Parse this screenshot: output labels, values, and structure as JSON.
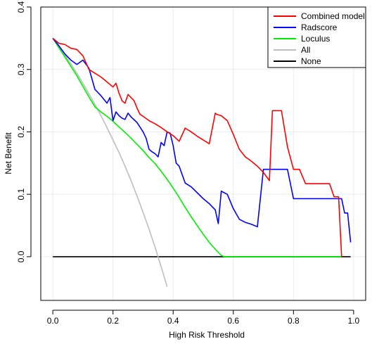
{
  "chart_data": {
    "type": "line",
    "title": "",
    "xlabel": "High Risk Threshold",
    "ylabel": "Net Benefit",
    "xlim": [
      0.0,
      1.0
    ],
    "ylim": [
      -0.07,
      0.4
    ],
    "x_ticks": [
      0.0,
      0.2,
      0.4,
      0.6,
      0.8,
      1.0
    ],
    "x_tick_labels": [
      "0.0",
      "0.2",
      "0.4",
      "0.6",
      "0.8",
      "1.0"
    ],
    "y_ticks": [
      0.0,
      0.1,
      0.2,
      0.3,
      0.4
    ],
    "y_tick_labels": [
      "0.0",
      "0.1",
      "0.2",
      "0.3",
      "0.4"
    ],
    "grid": true,
    "legend_position": "top-right",
    "series": [
      {
        "name": "Combined model",
        "color": "#ff0000",
        "x": [
          0.0,
          0.02,
          0.04,
          0.06,
          0.08,
          0.1,
          0.12,
          0.14,
          0.16,
          0.18,
          0.2,
          0.21,
          0.22,
          0.23,
          0.24,
          0.25,
          0.26,
          0.27,
          0.28,
          0.29,
          0.3,
          0.32,
          0.34,
          0.36,
          0.38,
          0.4,
          0.42,
          0.44,
          0.46,
          0.48,
          0.5,
          0.52,
          0.54,
          0.545,
          0.56,
          0.58,
          0.6,
          0.62,
          0.64,
          0.66,
          0.68,
          0.7,
          0.72,
          0.73,
          0.74,
          0.76,
          0.78,
          0.8,
          0.82,
          0.84,
          0.86,
          0.88,
          0.9,
          0.92,
          0.935,
          0.95,
          0.96
        ],
        "values": [
          0.35,
          0.342,
          0.34,
          0.334,
          0.332,
          0.322,
          0.3,
          0.294,
          0.288,
          0.28,
          0.272,
          0.278,
          0.262,
          0.25,
          0.246,
          0.26,
          0.255,
          0.25,
          0.238,
          0.228,
          0.225,
          0.218,
          0.213,
          0.207,
          0.2,
          0.194,
          0.185,
          0.206,
          0.2,
          0.193,
          0.187,
          0.181,
          0.23,
          0.228,
          0.226,
          0.218,
          0.196,
          0.172,
          0.16,
          0.153,
          0.145,
          0.135,
          0.122,
          0.234,
          0.234,
          0.234,
          0.176,
          0.14,
          0.14,
          0.117,
          0.117,
          0.117,
          0.117,
          0.117,
          0.096,
          0.096,
          0.0
        ]
      },
      {
        "name": "Radscore",
        "color": "#0000ff",
        "x": [
          0.0,
          0.02,
          0.04,
          0.06,
          0.08,
          0.1,
          0.12,
          0.13,
          0.14,
          0.16,
          0.18,
          0.19,
          0.2,
          0.21,
          0.22,
          0.23,
          0.24,
          0.25,
          0.26,
          0.28,
          0.3,
          0.31,
          0.32,
          0.33,
          0.34,
          0.35,
          0.36,
          0.37,
          0.38,
          0.39,
          0.4,
          0.41,
          0.42,
          0.44,
          0.46,
          0.5,
          0.52,
          0.54,
          0.55,
          0.56,
          0.58,
          0.6,
          0.62,
          0.64,
          0.66,
          0.68,
          0.7,
          0.72,
          0.74,
          0.76,
          0.78,
          0.8,
          0.82,
          0.84,
          0.86,
          0.88,
          0.9,
          0.92,
          0.94,
          0.96,
          0.97,
          0.98,
          0.99
        ],
        "values": [
          0.35,
          0.338,
          0.325,
          0.315,
          0.308,
          0.315,
          0.302,
          0.285,
          0.268,
          0.258,
          0.246,
          0.255,
          0.218,
          0.232,
          0.226,
          0.222,
          0.22,
          0.23,
          0.224,
          0.215,
          0.2,
          0.19,
          0.172,
          0.168,
          0.165,
          0.16,
          0.183,
          0.178,
          0.2,
          0.198,
          0.178,
          0.15,
          0.145,
          0.118,
          0.112,
          0.093,
          0.085,
          0.075,
          0.053,
          0.105,
          0.1,
          0.077,
          0.06,
          0.055,
          0.052,
          0.048,
          0.14,
          0.14,
          0.14,
          0.14,
          0.14,
          0.093,
          0.093,
          0.093,
          0.093,
          0.093,
          0.093,
          0.093,
          0.093,
          0.093,
          0.07,
          0.07,
          0.023
        ]
      },
      {
        "name": "Loculus",
        "color": "#00ee00",
        "x": [
          0.0,
          0.02,
          0.04,
          0.06,
          0.08,
          0.1,
          0.12,
          0.14,
          0.16,
          0.18,
          0.2,
          0.22,
          0.24,
          0.26,
          0.28,
          0.3,
          0.32,
          0.34,
          0.36,
          0.38,
          0.4,
          0.42,
          0.44,
          0.46,
          0.48,
          0.5,
          0.52,
          0.54,
          0.56,
          0.57,
          0.6,
          0.7,
          0.8,
          0.9,
          0.95,
          0.96
        ],
        "values": [
          0.35,
          0.335,
          0.32,
          0.305,
          0.29,
          0.273,
          0.256,
          0.24,
          0.232,
          0.225,
          0.217,
          0.208,
          0.199,
          0.19,
          0.18,
          0.17,
          0.159,
          0.149,
          0.137,
          0.124,
          0.11,
          0.095,
          0.079,
          0.064,
          0.05,
          0.036,
          0.023,
          0.012,
          0.002,
          0.0,
          0.0,
          0.0,
          0.0,
          0.0,
          0.0,
          0.0
        ]
      },
      {
        "name": "All",
        "color": "#bebebe",
        "x": [
          0.0,
          0.02,
          0.04,
          0.06,
          0.08,
          0.1,
          0.12,
          0.14,
          0.16,
          0.18,
          0.2,
          0.22,
          0.24,
          0.26,
          0.28,
          0.3,
          0.32,
          0.34,
          0.36,
          0.38
        ],
        "values": [
          0.35,
          0.337,
          0.323,
          0.309,
          0.294,
          0.278,
          0.261,
          0.244,
          0.226,
          0.207,
          0.187,
          0.167,
          0.145,
          0.122,
          0.097,
          0.071,
          0.044,
          0.015,
          -0.016,
          -0.048
        ]
      },
      {
        "name": "None",
        "color": "#000000",
        "x": [
          0.0,
          0.99
        ],
        "values": [
          0.0,
          0.0
        ]
      }
    ]
  }
}
